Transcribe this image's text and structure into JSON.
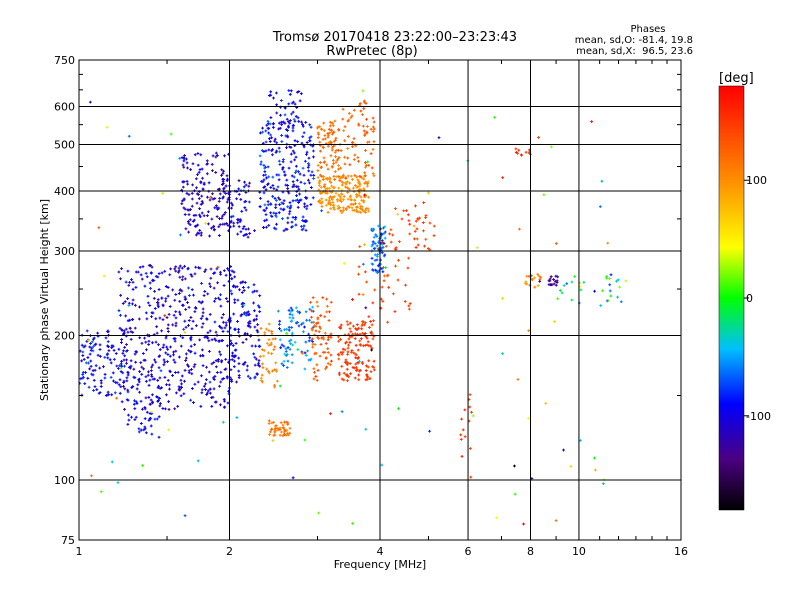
{
  "chart_data": {
    "type": "scatter",
    "title": "Tromsø 20170418 23:22:00–23:23:43",
    "subtitle": "RwPretec (8p)",
    "xlabel": "Frequency [MHz]",
    "ylabel": "Stationary phase Virtual Height [km]",
    "x_scale": "log",
    "y_scale": "log",
    "xlim": [
      1,
      16
    ],
    "ylim": [
      75,
      750
    ],
    "x_ticks": [
      1,
      2,
      4,
      6,
      8,
      10,
      16
    ],
    "y_ticks": [
      75,
      100,
      200,
      300,
      400,
      500,
      600,
      750
    ],
    "grid": true,
    "stats": {
      "heading": "Phases",
      "line_o": "mean, sd,O: -81.4, 19.8",
      "line_x": "mean, sd,X:  96.5, 23.6"
    },
    "colorbar": {
      "label": "[deg]",
      "range": [
        -180,
        180
      ],
      "ticks": [
        100,
        0,
        -100
      ]
    },
    "clusters": [
      {
        "fmin": 1.0,
        "fmax": 1.25,
        "hmin": 150,
        "hmax": 205,
        "phase": -95,
        "spread": 25,
        "n": 120
      },
      {
        "fmin": 1.2,
        "fmax": 2.05,
        "hmin": 140,
        "hmax": 280,
        "phase": -105,
        "spread": 25,
        "n": 480
      },
      {
        "fmin": 1.25,
        "fmax": 1.45,
        "hmin": 120,
        "hmax": 170,
        "phase": -95,
        "spread": 20,
        "n": 60
      },
      {
        "fmin": 1.6,
        "fmax": 2.0,
        "hmin": 320,
        "hmax": 480,
        "phase": -110,
        "spread": 22,
        "n": 170
      },
      {
        "fmin": 2.0,
        "fmax": 2.3,
        "hmin": 160,
        "hmax": 260,
        "phase": -100,
        "spread": 25,
        "n": 120
      },
      {
        "fmin": 2.0,
        "fmax": 2.2,
        "hmin": 320,
        "hmax": 420,
        "phase": -100,
        "spread": 25,
        "n": 50
      },
      {
        "fmin": 2.3,
        "fmax": 2.95,
        "hmin": 330,
        "hmax": 560,
        "phase": -90,
        "spread": 30,
        "n": 260
      },
      {
        "fmin": 2.4,
        "fmax": 2.8,
        "hmin": 550,
        "hmax": 650,
        "phase": -90,
        "spread": 30,
        "n": 40
      },
      {
        "fmin": 2.3,
        "fmax": 2.5,
        "hmin": 155,
        "hmax": 215,
        "phase": 105,
        "spread": 15,
        "n": 40
      },
      {
        "fmin": 2.5,
        "fmax": 2.95,
        "hmin": 170,
        "hmax": 230,
        "phase": -60,
        "spread": 30,
        "n": 80
      },
      {
        "fmin": 2.4,
        "fmax": 2.65,
        "hmin": 123,
        "hmax": 133,
        "phase": 115,
        "spread": 15,
        "n": 45
      },
      {
        "fmin": 2.9,
        "fmax": 3.2,
        "hmin": 160,
        "hmax": 240,
        "phase": 130,
        "spread": 20,
        "n": 70
      },
      {
        "fmin": 3.0,
        "fmax": 3.35,
        "hmin": 420,
        "hmax": 560,
        "phase": 120,
        "spread": 15,
        "n": 90
      },
      {
        "fmin": 3.0,
        "fmax": 3.8,
        "hmin": 360,
        "hmax": 430,
        "phase": 100,
        "spread": 12,
        "n": 190
      },
      {
        "fmin": 3.35,
        "fmax": 3.9,
        "hmin": 420,
        "hmax": 620,
        "phase": 125,
        "spread": 20,
        "n": 70
      },
      {
        "fmin": 3.3,
        "fmax": 3.9,
        "hmin": 160,
        "hmax": 215,
        "phase": 150,
        "spread": 15,
        "n": 140
      },
      {
        "fmin": 3.6,
        "fmax": 4.6,
        "hmin": 210,
        "hmax": 330,
        "phase": 140,
        "spread": 18,
        "n": 40
      },
      {
        "fmin": 3.85,
        "fmax": 4.1,
        "hmin": 270,
        "hmax": 340,
        "phase": -65,
        "spread": 25,
        "n": 70
      },
      {
        "fmin": 4.2,
        "fmax": 5.2,
        "hmin": 300,
        "hmax": 380,
        "phase": 145,
        "spread": 15,
        "n": 35
      },
      {
        "fmin": 5.8,
        "fmax": 6.1,
        "hmin": 100,
        "hmax": 160,
        "phase": 150,
        "spread": 15,
        "n": 14
      },
      {
        "fmin": 7.3,
        "fmax": 8.0,
        "hmin": 475,
        "hmax": 490,
        "phase": 150,
        "spread": 15,
        "n": 12
      },
      {
        "fmin": 7.8,
        "fmax": 8.4,
        "hmin": 245,
        "hmax": 270,
        "phase": 110,
        "spread": 25,
        "n": 16
      },
      {
        "fmin": 8.7,
        "fmax": 9.1,
        "hmin": 254,
        "hmax": 266,
        "phase": -130,
        "spread": 20,
        "n": 16
      },
      {
        "fmin": 9.0,
        "fmax": 12.5,
        "hmin": 230,
        "hmax": 270,
        "phase": -20,
        "spread": 60,
        "n": 30
      },
      {
        "fmin": 1.0,
        "fmax": 12.0,
        "hmin": 80,
        "hmax": 650,
        "phase": 0,
        "spread": 180,
        "n": 110
      }
    ]
  }
}
